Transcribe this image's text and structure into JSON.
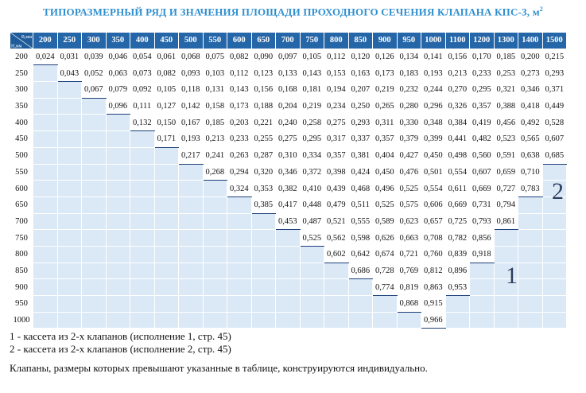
{
  "title": "ТИПОРАЗМЕРНЫЙ РЯД И ЗНАЧЕНИЯ ПЛОЩАДИ ПРОХОДНОГО СЕЧЕНИЯ КЛАПАНА КПС-3, м",
  "title_sup": "2",
  "corner": {
    "b_label": "В,мм",
    "h_label": "Н,мм"
  },
  "columns": [
    "200",
    "250",
    "300",
    "350",
    "400",
    "450",
    "500",
    "550",
    "600",
    "650",
    "700",
    "750",
    "800",
    "850",
    "900",
    "950",
    "1000",
    "1100",
    "1200",
    "1300",
    "1400",
    "1500"
  ],
  "rows": [
    {
      "h": "200",
      "start": 0,
      "values": [
        "0,024",
        "0,031",
        "0,039",
        "0,046",
        "0,054",
        "0,061",
        "0,068",
        "0,075",
        "0,082",
        "0,090",
        "0,097",
        "0,105",
        "0,112",
        "0,120",
        "0,126",
        "0,134",
        "0,141",
        "0,156",
        "0,170",
        "0,185",
        "0,200",
        "0,215"
      ]
    },
    {
      "h": "250",
      "start": 1,
      "values": [
        "0,043",
        "0,052",
        "0,063",
        "0,073",
        "0,082",
        "0,093",
        "0,103",
        "0,112",
        "0,123",
        "0,133",
        "0,143",
        "0,153",
        "0,163",
        "0,173",
        "0,183",
        "0,193",
        "0,213",
        "0,233",
        "0,253",
        "0,273",
        "0,293"
      ]
    },
    {
      "h": "300",
      "start": 2,
      "values": [
        "0,067",
        "0,079",
        "0,092",
        "0,105",
        "0,118",
        "0,131",
        "0,143",
        "0,156",
        "0,168",
        "0,181",
        "0,194",
        "0,207",
        "0,219",
        "0,232",
        "0,244",
        "0,270",
        "0,295",
        "0,321",
        "0,346",
        "0,371"
      ]
    },
    {
      "h": "350",
      "start": 3,
      "values": [
        "0,096",
        "0,111",
        "0,127",
        "0,142",
        "0,158",
        "0,173",
        "0,188",
        "0,204",
        "0,219",
        "0,234",
        "0,250",
        "0,265",
        "0,280",
        "0,296",
        "0,326",
        "0,357",
        "0,388",
        "0,418",
        "0,449"
      ]
    },
    {
      "h": "400",
      "start": 4,
      "values": [
        "0,132",
        "0,150",
        "0,167",
        "0,185",
        "0,203",
        "0,221",
        "0,240",
        "0,258",
        "0,275",
        "0,293",
        "0,311",
        "0,330",
        "0,348",
        "0,384",
        "0,419",
        "0,456",
        "0,492",
        "0,528"
      ]
    },
    {
      "h": "450",
      "start": 5,
      "values": [
        "0,171",
        "0,193",
        "0,213",
        "0,233",
        "0,255",
        "0,275",
        "0,295",
        "0,317",
        "0,337",
        "0,357",
        "0,379",
        "0,399",
        "0,441",
        "0,482",
        "0,523",
        "0,565",
        "0,607"
      ]
    },
    {
      "h": "500",
      "start": 6,
      "values": [
        "0,217",
        "0,241",
        "0,263",
        "0,287",
        "0,310",
        "0,334",
        "0,357",
        "0,381",
        "0,404",
        "0,427",
        "0,450",
        "0,498",
        "0,560",
        "0,591",
        "0,638",
        "0,685"
      ]
    },
    {
      "h": "550",
      "start": 7,
      "values": [
        "0,268",
        "0,294",
        "0,320",
        "0,346",
        "0,372",
        "0,398",
        "0,424",
        "0,450",
        "0,476",
        "0,501",
        "0,554",
        "0,607",
        "0,659",
        "0,710"
      ]
    },
    {
      "h": "600",
      "start": 8,
      "values": [
        "0,324",
        "0,353",
        "0,382",
        "0,410",
        "0,439",
        "0,468",
        "0,496",
        "0,525",
        "0,554",
        "0,611",
        "0,669",
        "0,727",
        "0,783"
      ]
    },
    {
      "h": "650",
      "start": 9,
      "values": [
        "0,385",
        "0,417",
        "0,448",
        "0,479",
        "0,511",
        "0,525",
        "0,575",
        "0,606",
        "0,669",
        "0,731",
        "0,794"
      ]
    },
    {
      "h": "700",
      "start": 10,
      "values": [
        "0,453",
        "0,487",
        "0,521",
        "0,555",
        "0,589",
        "0,623",
        "0,657",
        "0,725",
        "0,793",
        "0,861"
      ]
    },
    {
      "h": "750",
      "start": 11,
      "values": [
        "0,525",
        "0,562",
        "0,598",
        "0,626",
        "0,663",
        "0,708",
        "0,782",
        "0,856"
      ]
    },
    {
      "h": "800",
      "start": 12,
      "values": [
        "0,602",
        "0,642",
        "0,674",
        "0,721",
        "0,760",
        "0,839",
        "0,918"
      ]
    },
    {
      "h": "850",
      "start": 13,
      "values": [
        "0,686",
        "0,728",
        "0,769",
        "0,812",
        "0,896"
      ]
    },
    {
      "h": "900",
      "start": 14,
      "values": [
        "0,774",
        "0,819",
        "0,863",
        "0,953"
      ]
    },
    {
      "h": "950",
      "start": 15,
      "values": [
        "0,868",
        "0,915"
      ]
    },
    {
      "h": "1000",
      "start": 16,
      "values": [
        "0,966"
      ]
    }
  ],
  "zone_labels": {
    "one": "1",
    "two": "2"
  },
  "notes": {
    "line1": "1 - кассета из 2-х клапанов (исполнение 1, стр. 45)",
    "line2": "2 - кассета из 2-х клапанов (исполнение 2, стр. 45)",
    "line3": "Клапаны, размеры которых превышают указанные в таблице, конструируются индивидуально."
  }
}
